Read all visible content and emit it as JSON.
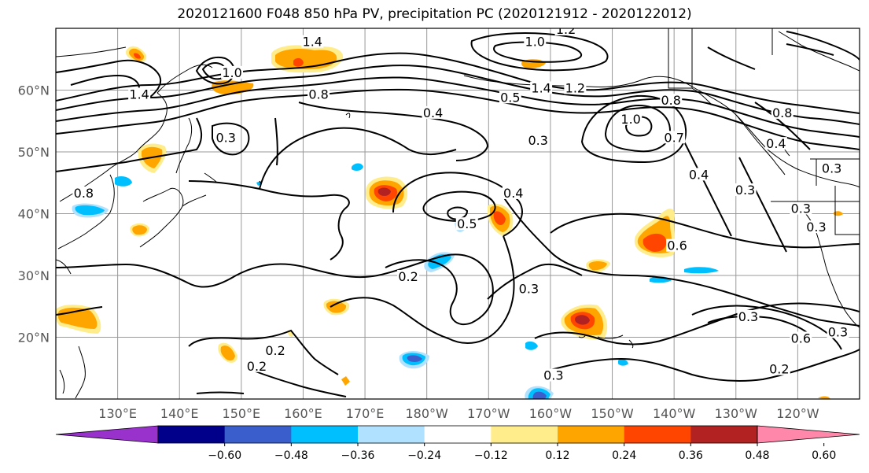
{
  "title": "2020121600 F048 850 hPa PV, precipitation PC (2020121912 - 2020122012)",
  "map": {
    "lon_range_east": [
      120,
      250
    ],
    "lat_range": [
      10,
      70
    ],
    "lat_ticks": [
      {
        "value": 60,
        "label": "60°N"
      },
      {
        "value": 50,
        "label": "50°N"
      },
      {
        "value": 40,
        "label": "40°N"
      },
      {
        "value": 30,
        "label": "30°N"
      },
      {
        "value": 20,
        "label": "20°N"
      }
    ],
    "lon_ticks": [
      {
        "value": 130,
        "label": "130°E"
      },
      {
        "value": 140,
        "label": "140°E"
      },
      {
        "value": 150,
        "label": "150°E"
      },
      {
        "value": 160,
        "label": "160°E"
      },
      {
        "value": 170,
        "label": "170°E"
      },
      {
        "value": 180,
        "label": "180°W"
      },
      {
        "value": 190,
        "label": "170°W"
      },
      {
        "value": 200,
        "label": "160°W"
      },
      {
        "value": 210,
        "label": "150°W"
      },
      {
        "value": 220,
        "label": "140°W"
      },
      {
        "value": 230,
        "label": "130°W"
      },
      {
        "value": 240,
        "label": "120°W"
      }
    ],
    "gridlines": true,
    "contour_labels": [
      {
        "text": "1.2",
        "lon": 202.5,
        "lat": 69.5
      },
      {
        "text": "1.0",
        "lon": 197.5,
        "lat": 67.5
      },
      {
        "text": "1.4",
        "lon": 161.5,
        "lat": 67.5
      },
      {
        "text": "1.0",
        "lon": 148.5,
        "lat": 62.5
      },
      {
        "text": "1.4",
        "lon": 133.5,
        "lat": 59
      },
      {
        "text": "0.8",
        "lon": 162.5,
        "lat": 59
      },
      {
        "text": "0.5",
        "lon": 193.5,
        "lat": 58.5
      },
      {
        "text": "1.4",
        "lon": 198.5,
        "lat": 60
      },
      {
        "text": "1.2",
        "lon": 204,
        "lat": 60
      },
      {
        "text": "0.8",
        "lon": 219.5,
        "lat": 58
      },
      {
        "text": "1.0",
        "lon": 213,
        "lat": 55
      },
      {
        "text": "0.4",
        "lon": 181,
        "lat": 56
      },
      {
        "text": "0.3",
        "lon": 147.5,
        "lat": 52
      },
      {
        "text": "0.3",
        "lon": 198,
        "lat": 51.5
      },
      {
        "text": "0.7",
        "lon": 220,
        "lat": 52
      },
      {
        "text": "0.4",
        "lon": 236.5,
        "lat": 51
      },
      {
        "text": "0.8",
        "lon": 237.5,
        "lat": 56
      },
      {
        "text": "0.4",
        "lon": 224,
        "lat": 46
      },
      {
        "text": "0.3",
        "lon": 231.5,
        "lat": 43.5
      },
      {
        "text": "0.8",
        "lon": 124.5,
        "lat": 43
      },
      {
        "text": "0.4",
        "lon": 194,
        "lat": 43
      },
      {
        "text": "0.5",
        "lon": 186.5,
        "lat": 38
      },
      {
        "text": "0.3",
        "lon": 245.5,
        "lat": 47
      },
      {
        "text": "0.3",
        "lon": 240.5,
        "lat": 40.5
      },
      {
        "text": "0.3",
        "lon": 243,
        "lat": 37.5
      },
      {
        "text": "0.6",
        "lon": 220.5,
        "lat": 34.5
      },
      {
        "text": "0.2",
        "lon": 177,
        "lat": 29.5
      },
      {
        "text": "0.3",
        "lon": 196.5,
        "lat": 27.5
      },
      {
        "text": "0.3",
        "lon": 232,
        "lat": 23
      },
      {
        "text": "0.6",
        "lon": 240.5,
        "lat": 19.5
      },
      {
        "text": "0.2",
        "lon": 155.5,
        "lat": 17.5
      },
      {
        "text": "0.2",
        "lon": 152.5,
        "lat": 15
      },
      {
        "text": "0.3",
        "lon": 200.5,
        "lat": 13.5
      },
      {
        "text": "0.2",
        "lon": 237,
        "lat": 14.5
      },
      {
        "text": "0.3",
        "lon": 246.5,
        "lat": 20.5
      }
    ]
  },
  "colorbar": {
    "labels": [
      "−0.60",
      "−0.48",
      "−0.36",
      "−0.24",
      "−0.12",
      "0.12",
      "0.24",
      "0.36",
      "0.48",
      "0.60"
    ],
    "colors": [
      "#9932cc",
      "#00008b",
      "#3a5fcd",
      "#00bfff",
      "#b0e2ff",
      "#ffffff",
      "#ffec8b",
      "#ffa500",
      "#ff4500",
      "#b22222",
      "#ff88aa"
    ]
  },
  "precip_colors": {
    "light_warm": "#ffec8b",
    "warm": "#ffa500",
    "hot": "#ff4500",
    "very_hot": "#b22222",
    "light_cool": "#b0e2ff",
    "cool": "#00bfff",
    "dark_cool": "#3a5fcd"
  }
}
